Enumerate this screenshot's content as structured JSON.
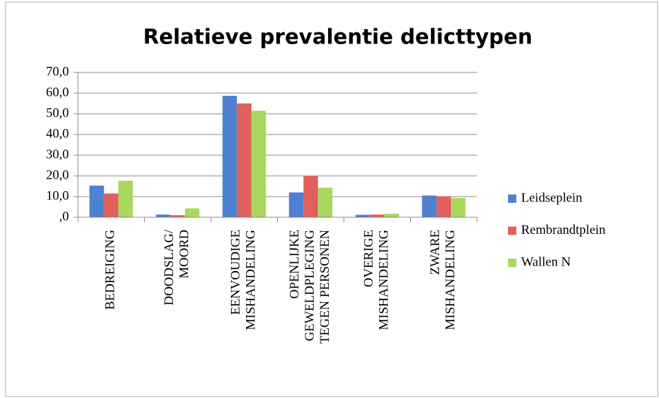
{
  "chart_data": {
    "type": "bar",
    "title": "Relatieve prevalentie delicttypen",
    "categories": [
      "BEDREIGING",
      "DOODSLAG/\nMOORD",
      "EENVOUDIGE\nMISHANDELING",
      "OPENLIJKE\nGEWELDPLEGING\nTEGEN PERSONEN",
      "OVERIGE\nMISHANDELING",
      "ZWARE\nMISHANDELING"
    ],
    "series": [
      {
        "name": "Leidseplein",
        "color": "#4f81d0",
        "values": [
          15.3,
          1.3,
          58.7,
          12.0,
          1.2,
          10.5
        ]
      },
      {
        "name": "Rembrandtplein",
        "color": "#e0605c",
        "values": [
          11.5,
          1.0,
          55.0,
          20.0,
          1.3,
          10.2
        ]
      },
      {
        "name": "Wallen N",
        "color": "#a8d860",
        "values": [
          17.7,
          4.3,
          51.5,
          14.3,
          1.7,
          9.3
        ]
      }
    ],
    "ylim": [
      0,
      70
    ],
    "yticks": [
      {
        "value": 0,
        "label": ",0"
      },
      {
        "value": 10,
        "label": "10,0"
      },
      {
        "value": 20,
        "label": "20,0"
      },
      {
        "value": 30,
        "label": "30,0"
      },
      {
        "value": 40,
        "label": "40,0"
      },
      {
        "value": 50,
        "label": "50,0"
      },
      {
        "value": 60,
        "label": "60,0"
      },
      {
        "value": 70,
        "label": "70,0"
      }
    ],
    "grid": true,
    "legend": "right"
  }
}
